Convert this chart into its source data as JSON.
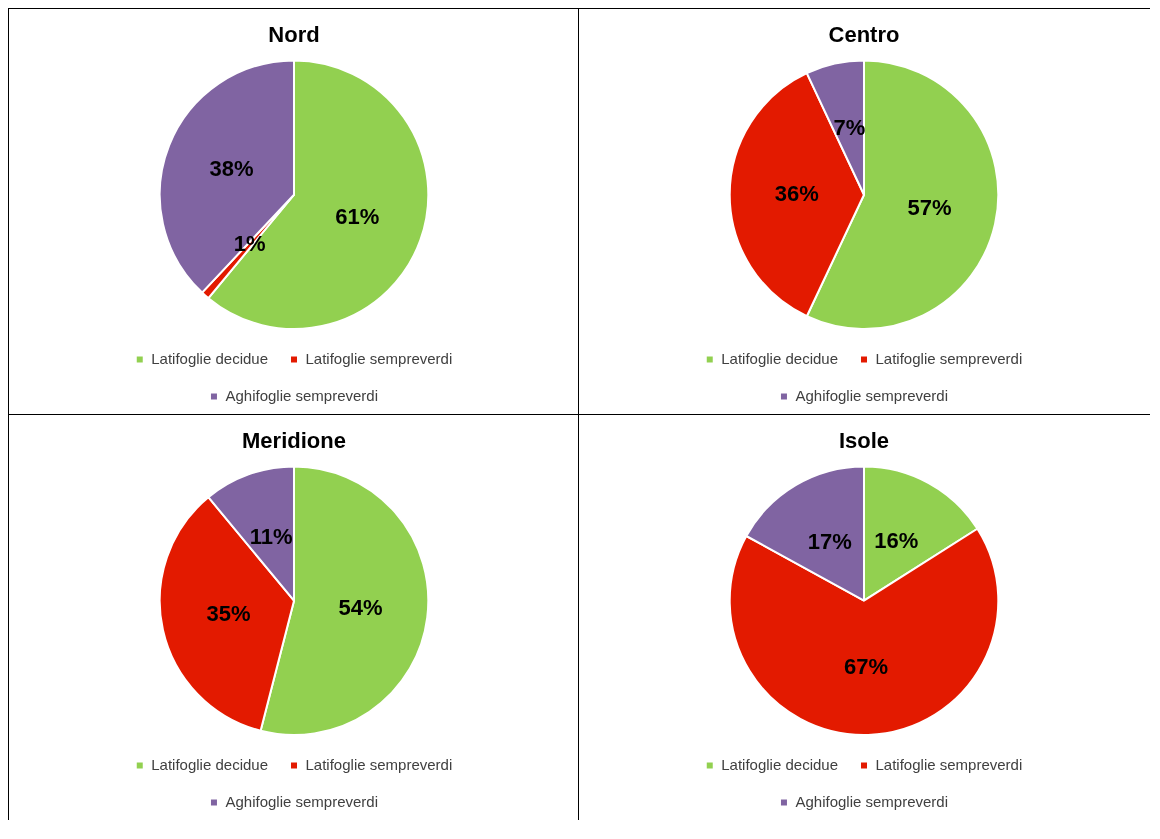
{
  "chart_data": [
    {
      "type": "pie",
      "title": "Nord",
      "categories": [
        "Latifoglie decidue",
        "Latifoglie sempreverdi",
        "Aghifoglie sempreverdi"
      ],
      "values": [
        61,
        1,
        38
      ],
      "value_labels": [
        "61%",
        "1%",
        "38%"
      ],
      "colors": [
        "#92d050",
        "#e31a00",
        "#8064a2"
      ],
      "legend": "bottom"
    },
    {
      "type": "pie",
      "title": "Centro",
      "categories": [
        "Latifoglie decidue",
        "Latifoglie sempreverdi",
        "Aghifoglie sempreverdi"
      ],
      "values": [
        57,
        36,
        7
      ],
      "value_labels": [
        "57%",
        "36%",
        "7%"
      ],
      "colors": [
        "#92d050",
        "#e31a00",
        "#8064a2"
      ],
      "legend": "bottom"
    },
    {
      "type": "pie",
      "title": "Meridione",
      "categories": [
        "Latifoglie decidue",
        "Latifoglie sempreverdi",
        "Aghifoglie sempreverdi"
      ],
      "values": [
        54,
        35,
        11
      ],
      "value_labels": [
        "54%",
        "35%",
        "11%"
      ],
      "colors": [
        "#92d050",
        "#e31a00",
        "#8064a2"
      ],
      "legend": "bottom"
    },
    {
      "type": "pie",
      "title": "Isole",
      "categories": [
        "Latifoglie decidue",
        "Latifoglie sempreverdi",
        "Aghifoglie sempreverdi"
      ],
      "values": [
        16,
        67,
        17
      ],
      "value_labels": [
        "16%",
        "67%",
        "17%"
      ],
      "colors": [
        "#92d050",
        "#e31a00",
        "#8064a2"
      ],
      "legend": "bottom"
    }
  ]
}
